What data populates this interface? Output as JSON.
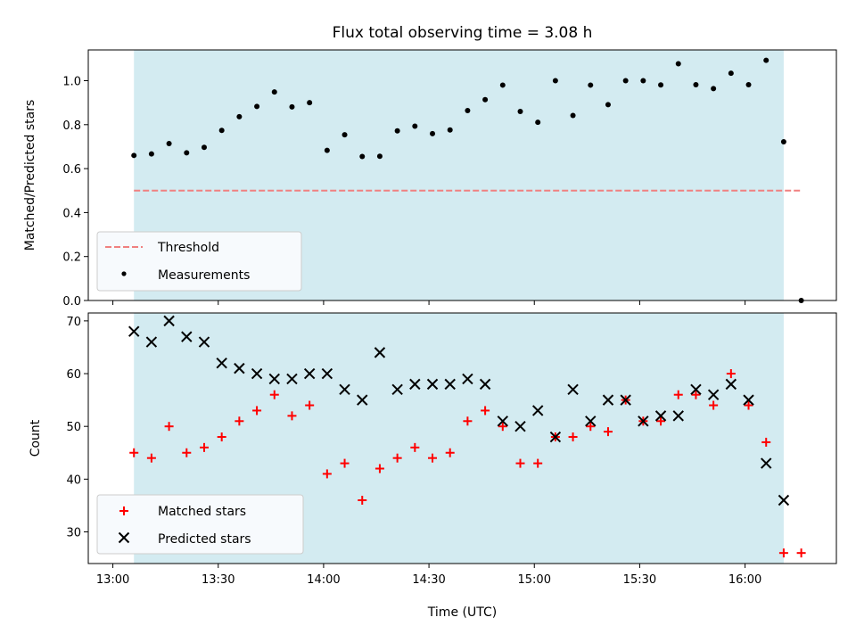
{
  "colors": {
    "shade": "#d3ebf1",
    "threshold": "#f08080",
    "measurement": "#000000",
    "matched": "#ff0000",
    "predicted": "#000000",
    "legend_bg": "#f7fafd",
    "legend_border": "#cccccc"
  },
  "chart_data": [
    {
      "type": "scatter",
      "title": "Flux total observing time = 3.08 h",
      "ylabel": "Matched/Predicted stars",
      "ylim": [
        0.0,
        1.14
      ],
      "yticks": [
        0.0,
        0.2,
        0.4,
        0.6,
        0.8,
        1.0
      ],
      "ytick_labels": [
        "0.0",
        "0.2",
        "0.4",
        "0.6",
        "0.8",
        "1.0"
      ],
      "xlim": [
        "12:53",
        "16:26"
      ],
      "shaded_span": [
        "13:06",
        "16:11"
      ],
      "legend": {
        "placement": "lower-left",
        "entries": [
          "Threshold",
          "Measurements"
        ]
      },
      "series": [
        {
          "name": "Threshold",
          "style": "dashed-line",
          "x": [
            "13:06",
            "16:16"
          ],
          "y": [
            0.5,
            0.5
          ]
        },
        {
          "name": "Measurements",
          "style": "dot",
          "x": [
            "13:06",
            "13:11",
            "13:16",
            "13:21",
            "13:26",
            "13:31",
            "13:36",
            "13:41",
            "13:46",
            "13:51",
            "13:56",
            "14:01",
            "14:06",
            "14:11",
            "14:16",
            "14:21",
            "14:26",
            "14:31",
            "14:36",
            "14:41",
            "14:46",
            "14:51",
            "14:56",
            "15:01",
            "15:06",
            "15:11",
            "15:16",
            "15:21",
            "15:26",
            "15:31",
            "15:36",
            "15:41",
            "15:46",
            "15:51",
            "15:56",
            "16:01",
            "16:06",
            "16:11",
            "16:16"
          ],
          "y": [
            0.66,
            0.667,
            0.714,
            0.672,
            0.697,
            0.774,
            0.836,
            0.883,
            0.949,
            0.881,
            0.9,
            0.683,
            0.754,
            0.655,
            0.656,
            0.772,
            0.793,
            0.759,
            0.776,
            0.864,
            0.914,
            0.98,
            0.86,
            0.811,
            1.0,
            0.842,
            0.98,
            0.891,
            1.0,
            1.0,
            0.981,
            1.077,
            0.982,
            0.964,
            1.034,
            0.982,
            1.093,
            0.722,
            0.0
          ]
        }
      ]
    },
    {
      "type": "scatter",
      "xlabel": "Time (UTC)",
      "ylabel": "Count",
      "ylim": [
        24,
        71.5
      ],
      "yticks": [
        30,
        40,
        50,
        60,
        70
      ],
      "ytick_labels": [
        "30",
        "40",
        "50",
        "60",
        "70"
      ],
      "xlim": [
        "12:53",
        "16:26"
      ],
      "xticks": [
        "13:00",
        "13:30",
        "14:00",
        "14:30",
        "15:00",
        "15:30",
        "16:00"
      ],
      "xtick_labels": [
        "13:00",
        "13:30",
        "14:00",
        "14:30",
        "15:00",
        "15:30",
        "16:00"
      ],
      "shaded_span": [
        "13:06",
        "16:11"
      ],
      "legend": {
        "placement": "lower-left",
        "entries": [
          "Matched stars",
          "Predicted stars"
        ]
      },
      "series": [
        {
          "name": "Matched stars",
          "marker": "plus",
          "x": [
            "13:06",
            "13:11",
            "13:16",
            "13:21",
            "13:26",
            "13:31",
            "13:36",
            "13:41",
            "13:46",
            "13:51",
            "13:56",
            "14:01",
            "14:06",
            "14:11",
            "14:16",
            "14:21",
            "14:26",
            "14:31",
            "14:36",
            "14:41",
            "14:46",
            "14:51",
            "14:56",
            "15:01",
            "15:06",
            "15:11",
            "15:16",
            "15:21",
            "15:26",
            "15:31",
            "15:36",
            "15:41",
            "15:46",
            "15:51",
            "15:56",
            "16:01",
            "16:06",
            "16:11",
            "16:16"
          ],
          "y": [
            45,
            44,
            50,
            45,
            46,
            48,
            51,
            53,
            56,
            52,
            54,
            41,
            43,
            36,
            42,
            44,
            46,
            44,
            45,
            51,
            53,
            50,
            43,
            43,
            48,
            48,
            50,
            49,
            55,
            51,
            51,
            56,
            56,
            54,
            60,
            54,
            47,
            26,
            26
          ]
        },
        {
          "name": "Predicted stars",
          "marker": "x",
          "x": [
            "13:06",
            "13:11",
            "13:16",
            "13:21",
            "13:26",
            "13:31",
            "13:36",
            "13:41",
            "13:46",
            "13:51",
            "13:56",
            "14:01",
            "14:06",
            "14:11",
            "14:16",
            "14:21",
            "14:26",
            "14:31",
            "14:36",
            "14:41",
            "14:46",
            "14:51",
            "14:56",
            "15:01",
            "15:06",
            "15:11",
            "15:16",
            "15:21",
            "15:26",
            "15:31",
            "15:36",
            "15:41",
            "15:46",
            "15:51",
            "15:56",
            "16:01",
            "16:06",
            "16:11"
          ],
          "y": [
            68,
            66,
            70,
            67,
            66,
            62,
            61,
            60,
            59,
            59,
            60,
            60,
            57,
            55,
            64,
            57,
            58,
            58,
            58,
            59,
            58,
            51,
            50,
            53,
            48,
            57,
            51,
            55,
            55,
            51,
            52,
            52,
            57,
            56,
            58,
            55,
            43,
            36
          ]
        }
      ]
    }
  ]
}
